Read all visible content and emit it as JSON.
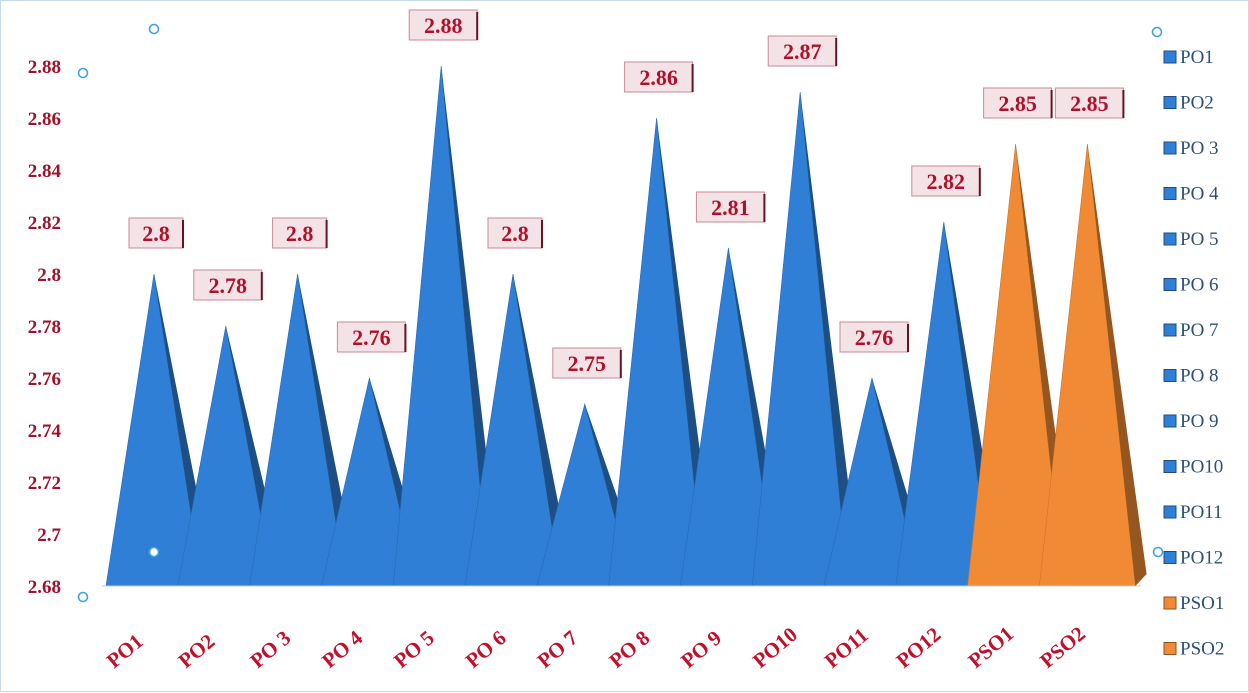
{
  "chart_data": {
    "type": "bar",
    "bar_shape": "pyramid",
    "categories": [
      "PO1",
      "PO2",
      "PO 3",
      "PO 4",
      "PO 5",
      "PO 6",
      "PO 7",
      "PO 8",
      "PO 9",
      "PO10",
      "PO11",
      "PO12",
      "PSO1",
      "PSO2"
    ],
    "values": [
      2.8,
      2.78,
      2.8,
      2.76,
      2.88,
      2.8,
      2.75,
      2.86,
      2.81,
      2.87,
      2.76,
      2.82,
      2.85,
      2.85
    ],
    "data_labels": [
      "2.8",
      "2.78",
      "2.8",
      "2.76",
      "2.88",
      "2.8",
      "2.75",
      "2.86",
      "2.81",
      "2.87",
      "2.76",
      "2.82",
      "2.85",
      "2.85"
    ],
    "y_ticks": [
      "2.68",
      "2.7",
      "2.72",
      "2.74",
      "2.76",
      "2.78",
      "2.8",
      "2.82",
      "2.84",
      "2.86",
      "2.88"
    ],
    "ylim": [
      2.68,
      2.88
    ],
    "legend": {
      "position": "right",
      "entries": [
        "PO1",
        "PO2",
        "PO 3",
        "PO 4",
        "PO 5",
        "PO 6",
        "PO 7",
        "PO 8",
        "PO 9",
        "PO10",
        "PO11",
        "PO12",
        "PSO1",
        "PSO2"
      ]
    },
    "colors": {
      "PO": "#2f7fd6",
      "PSO": "#f08a34",
      "tick_label": "#a0122a",
      "data_label": "#b0102a"
    },
    "grid": false,
    "title": "",
    "xlabel": "",
    "ylabel": ""
  }
}
